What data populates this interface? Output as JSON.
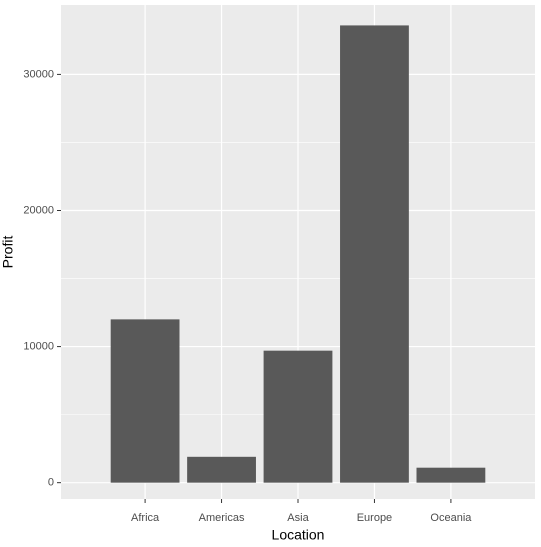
{
  "chart_data": {
    "type": "bar",
    "x_label": "Location",
    "y_label": "Profit",
    "categories": [
      "Africa",
      "Americas",
      "Asia",
      "Europe",
      "Oceania"
    ],
    "values": [
      12000,
      1900,
      9700,
      33600,
      1100
    ],
    "color": "#595959",
    "ylim": [
      -1200,
      35100
    ],
    "yticks": [
      0,
      10000,
      20000,
      30000
    ],
    "minor_yticks": [
      5000,
      15000,
      25000
    ],
    "grid": true
  }
}
